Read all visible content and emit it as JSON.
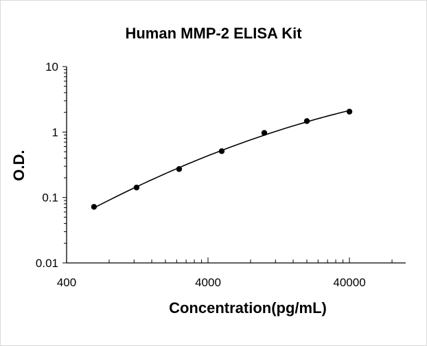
{
  "chart_data": {
    "type": "scatter",
    "title": "Human MMP-2 ELISA Kit",
    "xlabel": "Concentration(pg/mL)",
    "ylabel": "O.D.",
    "x_scale": "log",
    "y_scale": "log",
    "xlim": [
      400,
      100000
    ],
    "ylim": [
      0.01,
      10
    ],
    "x_ticks": [
      "400",
      "4000",
      "40000"
    ],
    "y_ticks": [
      "10",
      "1",
      "0.1",
      "0.01"
    ],
    "grid": false,
    "legend": "none",
    "series": [
      {
        "x": [
          625,
          1250,
          2500,
          5000,
          10000,
          20000,
          40000
        ],
        "y": [
          0.072,
          0.142,
          0.272,
          0.51,
          0.97,
          1.47,
          2.05
        ],
        "marker": "circle",
        "fit_curve": true
      }
    ],
    "colors": {
      "marker": "#000000",
      "line": "#000000",
      "axis": "#000000"
    }
  }
}
